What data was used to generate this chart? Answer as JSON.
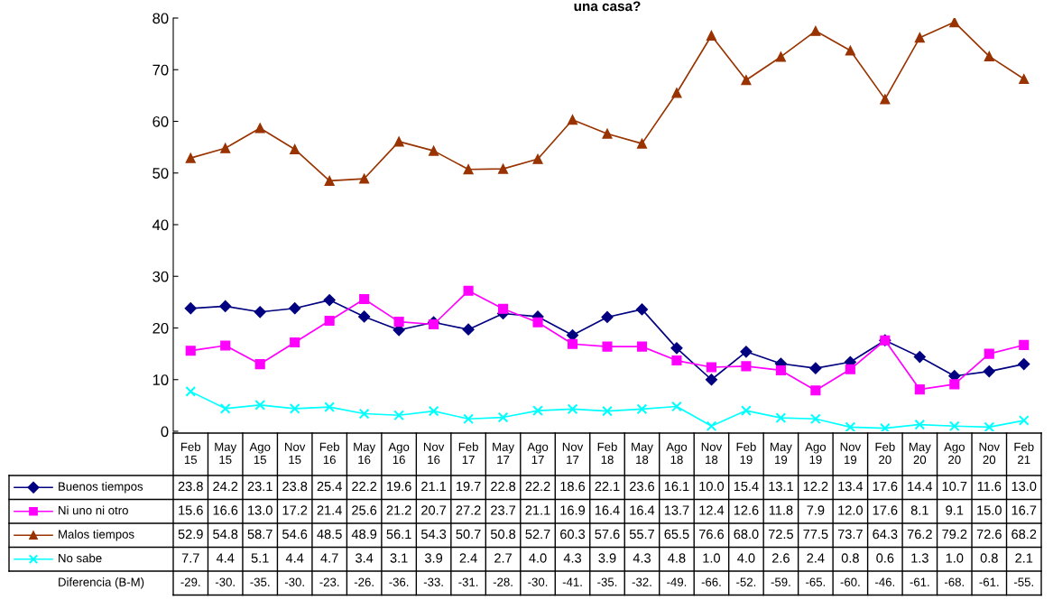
{
  "chart_data": {
    "type": "line",
    "title": "una casa?",
    "categories": [
      "Feb\n15",
      "May\n15",
      "Ago\n15",
      "Nov\n15",
      "Feb\n16",
      "May\n16",
      "Ago\n16",
      "Nov\n16",
      "Feb\n17",
      "May\n17",
      "Ago\n17",
      "Nov\n17",
      "Feb\n18",
      "May\n18",
      "Ago\n18",
      "Nov\n18",
      "Feb\n19",
      "May\n19",
      "Ago\n19",
      "Nov\n19",
      "Feb\n20",
      "May\n20",
      "Ago\n20",
      "Nov\n20",
      "Feb\n21"
    ],
    "series": [
      {
        "name": "Buenos tiempos",
        "color": "#000080",
        "marker": "diamond",
        "values": [
          23.8,
          24.2,
          23.1,
          23.8,
          25.4,
          22.2,
          19.6,
          21.1,
          19.7,
          22.8,
          22.2,
          18.6,
          22.1,
          23.6,
          16.1,
          10.0,
          15.4,
          13.1,
          12.2,
          13.4,
          17.6,
          14.4,
          10.7,
          11.6,
          13.0
        ],
        "value_labels": [
          "23.8",
          "24.2",
          "23.1",
          "23.8",
          "25.4",
          "22.2",
          "19.6",
          "21.1",
          "19.7",
          "22.8",
          "22.2",
          "18.6",
          "22.1",
          "23.6",
          "16.1",
          "10.0",
          "15.4",
          "13.1",
          "12.2",
          "13.4",
          "17.6",
          "14.4",
          "10.7",
          "11.6",
          "13.0"
        ]
      },
      {
        "name": "Ni uno ni otro",
        "color": "#ff00ff",
        "marker": "square",
        "values": [
          15.6,
          16.6,
          13.0,
          17.2,
          21.4,
          25.6,
          21.2,
          20.7,
          27.2,
          23.7,
          21.1,
          16.9,
          16.4,
          16.4,
          13.7,
          12.4,
          12.6,
          11.8,
          7.9,
          12.0,
          17.6,
          8.1,
          9.1,
          15.0,
          16.7
        ],
        "value_labels": [
          "15.6",
          "16.6",
          "13.0",
          "17.2",
          "21.4",
          "25.6",
          "21.2",
          "20.7",
          "27.2",
          "23.7",
          "21.1",
          "16.9",
          "16.4",
          "16.4",
          "13.7",
          "12.4",
          "12.6",
          "11.8",
          "7.9",
          "12.0",
          "17.6",
          "8.1",
          "9.1",
          "15.0",
          "16.7"
        ]
      },
      {
        "name": "Malos tiempos",
        "color": "#993300",
        "marker": "triangle",
        "values": [
          52.9,
          54.8,
          58.7,
          54.6,
          48.5,
          48.9,
          56.1,
          54.3,
          50.7,
          50.8,
          52.7,
          60.3,
          57.6,
          55.7,
          65.5,
          76.6,
          68.0,
          72.5,
          77.5,
          73.7,
          64.3,
          76.2,
          79.2,
          72.6,
          68.2
        ],
        "value_labels": [
          "52.9",
          "54.8",
          "58.7",
          "54.6",
          "48.5",
          "48.9",
          "56.1",
          "54.3",
          "50.7",
          "50.8",
          "52.7",
          "60.3",
          "57.6",
          "55.7",
          "65.5",
          "76.6",
          "68.0",
          "72.5",
          "77.5",
          "73.7",
          "64.3",
          "76.2",
          "79.2",
          "72.6",
          "68.2"
        ]
      },
      {
        "name": "No sabe",
        "color": "#00ffff",
        "marker": "cross",
        "values": [
          7.7,
          4.4,
          5.1,
          4.4,
          4.7,
          3.4,
          3.1,
          3.9,
          2.4,
          2.7,
          4.0,
          4.3,
          3.9,
          4.3,
          4.8,
          1.0,
          4.0,
          2.6,
          2.4,
          0.8,
          0.6,
          1.3,
          1.0,
          0.8,
          2.1
        ],
        "value_labels": [
          "7.7",
          "4.4",
          "5.1",
          "4.4",
          "4.7",
          "3.4",
          "3.1",
          "3.9",
          "2.4",
          "2.7",
          "4.0",
          "4.3",
          "3.9",
          "4.3",
          "4.8",
          "1.0",
          "4.0",
          "2.6",
          "2.4",
          "0.8",
          "0.6",
          "1.3",
          "1.0",
          "0.8",
          "2.1"
        ]
      }
    ],
    "annotations": [
      "Diferencia (B-M)",
      "-29.",
      "-30.",
      "-35.",
      "-30.",
      "-23.",
      "-26.",
      "-36.",
      "-33.",
      "-31.",
      "-28.",
      "-30.",
      "-41.",
      "-35.",
      "-32.",
      "-49.",
      "-66.",
      "-52.",
      "-59.",
      "-65.",
      "-60.",
      "-46.",
      "-61.",
      "-68.",
      "-61.",
      "-55."
    ],
    "ylim": [
      0,
      80
    ],
    "yticks": [
      0,
      10,
      20,
      30,
      40,
      50,
      60,
      70,
      80
    ],
    "tick_labels": "y",
    "grid": false,
    "legend": "bottom",
    "line_style": "solid"
  }
}
